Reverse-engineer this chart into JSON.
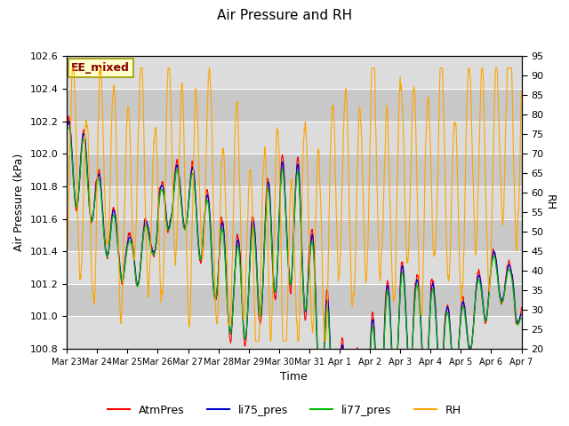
{
  "title": "Air Pressure and RH",
  "xlabel": "Time",
  "ylabel_left": "Air Pressure (kPa)",
  "ylabel_right": "RH",
  "ylim_left": [
    100.8,
    102.6
  ],
  "ylim_right": [
    20,
    95
  ],
  "yticks_left": [
    100.8,
    101.0,
    101.2,
    101.4,
    101.6,
    101.8,
    102.0,
    102.2,
    102.4,
    102.6
  ],
  "yticks_right": [
    20,
    25,
    30,
    35,
    40,
    45,
    50,
    55,
    60,
    65,
    70,
    75,
    80,
    85,
    90,
    95
  ],
  "xtick_labels": [
    "Mar 23",
    "Mar 24",
    "Mar 25",
    "Mar 26",
    "Mar 27",
    "Mar 28",
    "Mar 29",
    "Mar 30",
    "Mar 31",
    "Apr 1",
    "Apr 2",
    "Apr 3",
    "Apr 4",
    "Apr 5",
    "Apr 6",
    "Apr 7"
  ],
  "annotation_text": "EE_mixed",
  "annotation_color": "#8B0000",
  "annotation_bg": "#FFFFCC",
  "annotation_border": "#999900",
  "line_colors": {
    "AtmPres": "#FF0000",
    "li75_pres": "#0000CC",
    "li77_pres": "#00BB00",
    "RH": "#FFA500"
  },
  "legend_labels": [
    "AtmPres",
    "li75_pres",
    "li77_pres",
    "RH"
  ],
  "background_color": "#FFFFFF",
  "plot_bg_light": "#DCDCDC",
  "plot_bg_dark": "#C8C8C8",
  "grid_color": "#FFFFFF",
  "num_points": 1500
}
